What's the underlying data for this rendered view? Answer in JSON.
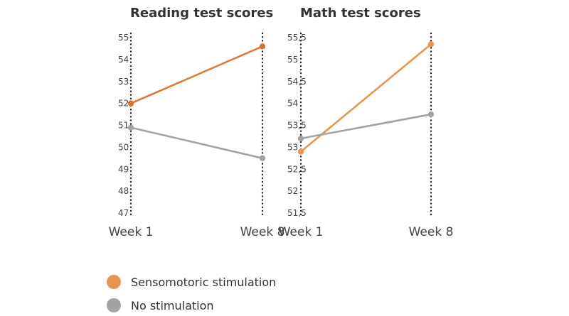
{
  "chart_data": [
    {
      "type": "line",
      "title": "Reading test scores",
      "categories": [
        "Week 1",
        "Week 8"
      ],
      "y_ticks": [
        "55",
        "54",
        "53",
        "52",
        "51",
        "50",
        "49",
        "48",
        "47"
      ],
      "ylim": [
        47,
        55
      ],
      "series": [
        {
          "name": "Sensomotoric stimulation",
          "values": [
            52.0,
            54.6
          ]
        },
        {
          "name": "No stimulation",
          "values": [
            50.9,
            49.5
          ]
        }
      ]
    },
    {
      "type": "line",
      "title": "Math test scores",
      "categories": [
        "Week 1",
        "Week 8"
      ],
      "y_ticks": [
        "55,5",
        "55",
        "54,5",
        "54",
        "53,5",
        "53",
        "52,5",
        "52",
        "51,5"
      ],
      "ylim": [
        51.5,
        55.5
      ],
      "series": [
        {
          "name": "Sensomotoric stimulation",
          "values": [
            52.9,
            55.35
          ]
        },
        {
          "name": "No stimulation",
          "values": [
            53.2,
            53.75
          ]
        }
      ]
    }
  ],
  "legend": [
    {
      "label": "Sensomotoric stimulation",
      "color": "#E8964F"
    },
    {
      "label": "No stimulation",
      "color": "#A3A3A3"
    }
  ],
  "colors": {
    "reading_sensomotoric_line": "#DC7B35",
    "reading_sensomotoric_point": "#D77430",
    "math_sensomotoric_line": "#E8964F",
    "no_stimulation": "#A3A3A3",
    "axis": "#222222"
  }
}
